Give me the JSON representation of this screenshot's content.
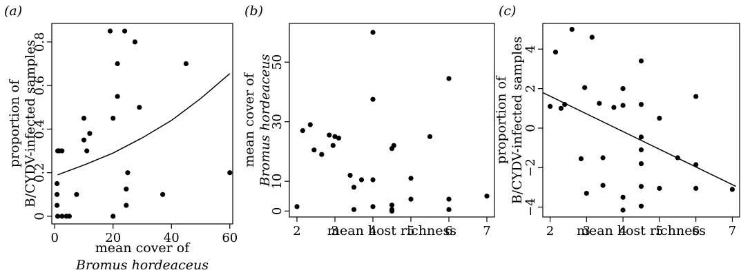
{
  "chart_data": [
    {
      "type": "scatter",
      "panel_label": "(a)",
      "xlabel": [
        "mean cover of",
        "Bromus hordeaceus"
      ],
      "ylabel": [
        "proportion of",
        "B/CYDV-infected samples"
      ],
      "xlim": [
        -1,
        61
      ],
      "ylim": [
        -0.035,
        0.885
      ],
      "xticks": [
        0,
        20,
        40,
        60
      ],
      "xtick_labels": [
        "0",
        "20",
        "40",
        "60"
      ],
      "yticks": [
        0,
        0.2,
        0.4,
        0.6,
        0.8
      ],
      "ytick_labels": [
        "0",
        "0.2",
        "0.4",
        "0.6",
        "0.8"
      ],
      "points": [
        [
          1,
          0.3
        ],
        [
          1.6,
          0.3
        ],
        [
          2.5,
          0.3
        ],
        [
          0.8,
          0.15
        ],
        [
          0.8,
          0.1
        ],
        [
          0.8,
          0.05
        ],
        [
          1,
          0
        ],
        [
          2.5,
          0
        ],
        [
          4,
          0
        ],
        [
          5,
          0
        ],
        [
          7.5,
          0.1
        ],
        [
          10,
          0.45
        ],
        [
          10,
          0.35
        ],
        [
          11,
          0.3
        ],
        [
          12,
          0.38
        ],
        [
          19,
          0.85
        ],
        [
          24,
          0.85
        ],
        [
          27.5,
          0.8
        ],
        [
          20,
          0.45
        ],
        [
          20,
          0
        ],
        [
          21.5,
          0.7
        ],
        [
          21.5,
          0.55
        ],
        [
          24.5,
          0.125
        ],
        [
          24.5,
          0.05
        ],
        [
          25,
          0.2
        ],
        [
          29,
          0.5
        ],
        [
          37,
          0.1
        ],
        [
          45,
          0.7
        ],
        [
          60,
          0.2
        ]
      ],
      "fit_line": [
        [
          1,
          0.19
        ],
        [
          10,
          0.235
        ],
        [
          20,
          0.29
        ],
        [
          30,
          0.36
        ],
        [
          40,
          0.44
        ],
        [
          50,
          0.54
        ],
        [
          60,
          0.655
        ]
      ]
    },
    {
      "type": "scatter",
      "panel_label": "(b)",
      "xlabel": [
        "mean host richness"
      ],
      "ylabel": [
        "mean cover of",
        "Bromus hordeaceus"
      ],
      "xlim": [
        1.8,
        7.2
      ],
      "ylim": [
        -2,
        63
      ],
      "xticks": [
        2,
        3,
        4,
        5,
        6,
        7
      ],
      "xtick_labels": [
        "2",
        "3",
        "4",
        "5",
        "6",
        "7"
      ],
      "yticks": [
        0,
        10,
        30,
        50
      ],
      "ytick_labels": [
        "0",
        "10",
        "30",
        "50"
      ],
      "points": [
        [
          2,
          1.5
        ],
        [
          2.15,
          27
        ],
        [
          2.35,
          29
        ],
        [
          2.45,
          20.5
        ],
        [
          2.65,
          19
        ],
        [
          2.85,
          25.5
        ],
        [
          2.95,
          22
        ],
        [
          3,
          25
        ],
        [
          3.1,
          24.5
        ],
        [
          3.4,
          12
        ],
        [
          3.5,
          8
        ],
        [
          3.5,
          0.5
        ],
        [
          3.7,
          10.5
        ],
        [
          4,
          60
        ],
        [
          4,
          37.5
        ],
        [
          4,
          10.5
        ],
        [
          4,
          1.5
        ],
        [
          4.5,
          21
        ],
        [
          4.55,
          22
        ],
        [
          4.5,
          2
        ],
        [
          4.5,
          0.5
        ],
        [
          4.5,
          0
        ],
        [
          5,
          11
        ],
        [
          5,
          4
        ],
        [
          5.5,
          25
        ],
        [
          6,
          44.5
        ],
        [
          6,
          4
        ],
        [
          6,
          0.5
        ],
        [
          7,
          5
        ]
      ]
    },
    {
      "type": "scatter",
      "panel_label": "(c)",
      "xlabel": [
        "mean host richness"
      ],
      "ylabel": [
        "proportion of",
        "B/CYDV-infected samples"
      ],
      "xlim": [
        1.8,
        7.2
      ],
      "ylim": [
        -4.5,
        5.3
      ],
      "xticks": [
        2,
        3,
        4,
        5,
        6,
        7
      ],
      "xtick_labels": [
        "2",
        "3",
        "4",
        "5",
        "6",
        "7"
      ],
      "yticks": [
        -4,
        -2,
        0,
        2,
        4
      ],
      "ytick_labels": [
        "−4",
        "−2",
        "0",
        "2",
        "4"
      ],
      "points": [
        [
          2,
          1.1
        ],
        [
          2.15,
          3.85
        ],
        [
          2.3,
          1.0
        ],
        [
          2.4,
          1.2
        ],
        [
          2.6,
          5.0
        ],
        [
          2.85,
          -1.55
        ],
        [
          2.95,
          2.05
        ],
        [
          3,
          -3.3
        ],
        [
          3.15,
          4.6
        ],
        [
          3.35,
          1.25
        ],
        [
          3.45,
          -1.5
        ],
        [
          3.45,
          -2.9
        ],
        [
          3.75,
          1.05
        ],
        [
          4,
          2.0
        ],
        [
          4,
          1.15
        ],
        [
          4,
          -3.5
        ],
        [
          4,
          -4.15
        ],
        [
          4.5,
          3.4
        ],
        [
          4.5,
          1.2
        ],
        [
          4.5,
          -0.45
        ],
        [
          4.5,
          -1.1
        ],
        [
          4.5,
          -1.8
        ],
        [
          4.5,
          -2.95
        ],
        [
          4.5,
          -3.95
        ],
        [
          5,
          0.5
        ],
        [
          5,
          -3.05
        ],
        [
          5.5,
          -1.5
        ],
        [
          6,
          1.6
        ],
        [
          6,
          -1.85
        ],
        [
          6,
          -3.05
        ],
        [
          7,
          -3.1
        ]
      ],
      "fit_line": [
        [
          1.8,
          1.8
        ],
        [
          7.1,
          -2.95
        ]
      ]
    }
  ]
}
